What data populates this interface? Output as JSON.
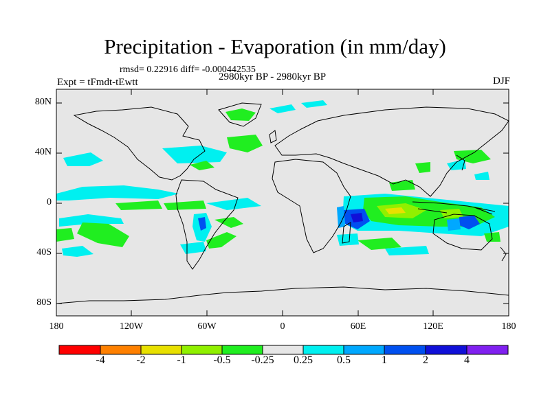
{
  "figure": {
    "title": "Precipitation - Evaporation (in mm/day)",
    "stats": "rmsd= 0.22916 diff= -0.000442535",
    "experiment": "Expt = tFmdt-tEwtt",
    "period": "2980kyr BP - 2980kyr BP",
    "season": "DJF"
  },
  "axes": {
    "lat_ticks": [
      "80N",
      "40N",
      "0",
      "40S",
      "80S"
    ],
    "lon_ticks": [
      "180",
      "120W",
      "60W",
      "0",
      "60E",
      "120E",
      "180"
    ]
  },
  "legend": {
    "labels": [
      "-4",
      "-2",
      "-1",
      "-0.5",
      "-0.25",
      "0.25",
      "0.5",
      "1",
      "2",
      "4"
    ],
    "colors": [
      "#ff0000",
      "#ff8000",
      "#e8e000",
      "#90f000",
      "#20ee20",
      "#e6e6e6",
      "#00f0f0",
      "#00a8ff",
      "#0050f0",
      "#1010d8",
      "#8020f0"
    ]
  },
  "colors": {
    "land_background": "#e6e6e6",
    "coastline": "#000000"
  }
}
